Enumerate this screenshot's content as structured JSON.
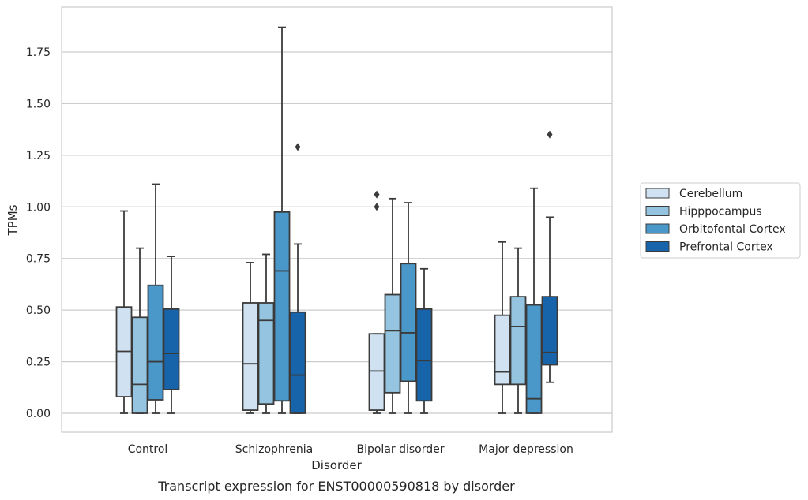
{
  "caption": "Transcript expression for ENST00000590818 by disorder",
  "chart_data": {
    "type": "box",
    "title": "",
    "xlabel": "Disorder",
    "ylabel": "TPMs",
    "ylim": [
      -0.09,
      1.97
    ],
    "yticks": [
      "0.00",
      "0.25",
      "0.50",
      "0.75",
      "1.00",
      "1.25",
      "1.50",
      "1.75"
    ],
    "ytick_values": [
      0,
      0.25,
      0.5,
      0.75,
      1.0,
      1.25,
      1.5,
      1.75
    ],
    "grid": true,
    "legend_position": "right",
    "categories": [
      "Control",
      "Schizophrenia",
      "Bipolar disorder",
      "Major depression"
    ],
    "series": [
      {
        "name": "Cerebellum",
        "color": "#d0e1f2",
        "boxes": [
          {
            "whisker_low": 0.0,
            "q1": 0.08,
            "median": 0.3,
            "q3": 0.515,
            "whisker_high": 0.98,
            "outliers": []
          },
          {
            "whisker_low": 0.0,
            "q1": 0.015,
            "median": 0.24,
            "q3": 0.535,
            "whisker_high": 0.73,
            "outliers": []
          },
          {
            "whisker_low": 0.0,
            "q1": 0.015,
            "median": 0.205,
            "q3": 0.385,
            "whisker_high": 0.385,
            "outliers": [
              1.0,
              1.06
            ]
          },
          {
            "whisker_low": 0.0,
            "q1": 0.14,
            "median": 0.2,
            "q3": 0.475,
            "whisker_high": 0.83,
            "outliers": []
          }
        ]
      },
      {
        "name": "Hipppocampus",
        "color": "#94c4df",
        "boxes": [
          {
            "whisker_low": 0.0,
            "q1": 0.0,
            "median": 0.14,
            "q3": 0.465,
            "whisker_high": 0.8,
            "outliers": []
          },
          {
            "whisker_low": 0.0,
            "q1": 0.045,
            "median": 0.45,
            "q3": 0.535,
            "whisker_high": 0.77,
            "outliers": []
          },
          {
            "whisker_low": 0.0,
            "q1": 0.1,
            "median": 0.4,
            "q3": 0.575,
            "whisker_high": 1.04,
            "outliers": []
          },
          {
            "whisker_low": 0.0,
            "q1": 0.14,
            "median": 0.42,
            "q3": 0.565,
            "whisker_high": 0.8,
            "outliers": []
          }
        ]
      },
      {
        "name": "Orbitofontal Cortex",
        "color": "#4a98c9",
        "boxes": [
          {
            "whisker_low": 0.0,
            "q1": 0.065,
            "median": 0.25,
            "q3": 0.62,
            "whisker_high": 1.11,
            "outliers": []
          },
          {
            "whisker_low": 0.0,
            "q1": 0.06,
            "median": 0.69,
            "q3": 0.975,
            "whisker_high": 1.87,
            "outliers": []
          },
          {
            "whisker_low": 0.0,
            "q1": 0.155,
            "median": 0.39,
            "q3": 0.725,
            "whisker_high": 1.02,
            "outliers": []
          },
          {
            "whisker_low": 0.0,
            "q1": 0.0,
            "median": 0.07,
            "q3": 0.525,
            "whisker_high": 1.09,
            "outliers": []
          }
        ]
      },
      {
        "name": "Prefrontal Cortex",
        "color": "#1764ab",
        "boxes": [
          {
            "whisker_low": 0.0,
            "q1": 0.115,
            "median": 0.29,
            "q3": 0.505,
            "whisker_high": 0.76,
            "outliers": []
          },
          {
            "whisker_low": 0.0,
            "q1": 0.0,
            "median": 0.185,
            "q3": 0.49,
            "whisker_high": 0.82,
            "outliers": [
              1.29
            ]
          },
          {
            "whisker_low": 0.0,
            "q1": 0.06,
            "median": 0.255,
            "q3": 0.505,
            "whisker_high": 0.7,
            "outliers": []
          },
          {
            "whisker_low": 0.15,
            "q1": 0.235,
            "median": 0.295,
            "q3": 0.565,
            "whisker_high": 0.95,
            "outliers": [
              1.35
            ]
          }
        ]
      }
    ]
  }
}
